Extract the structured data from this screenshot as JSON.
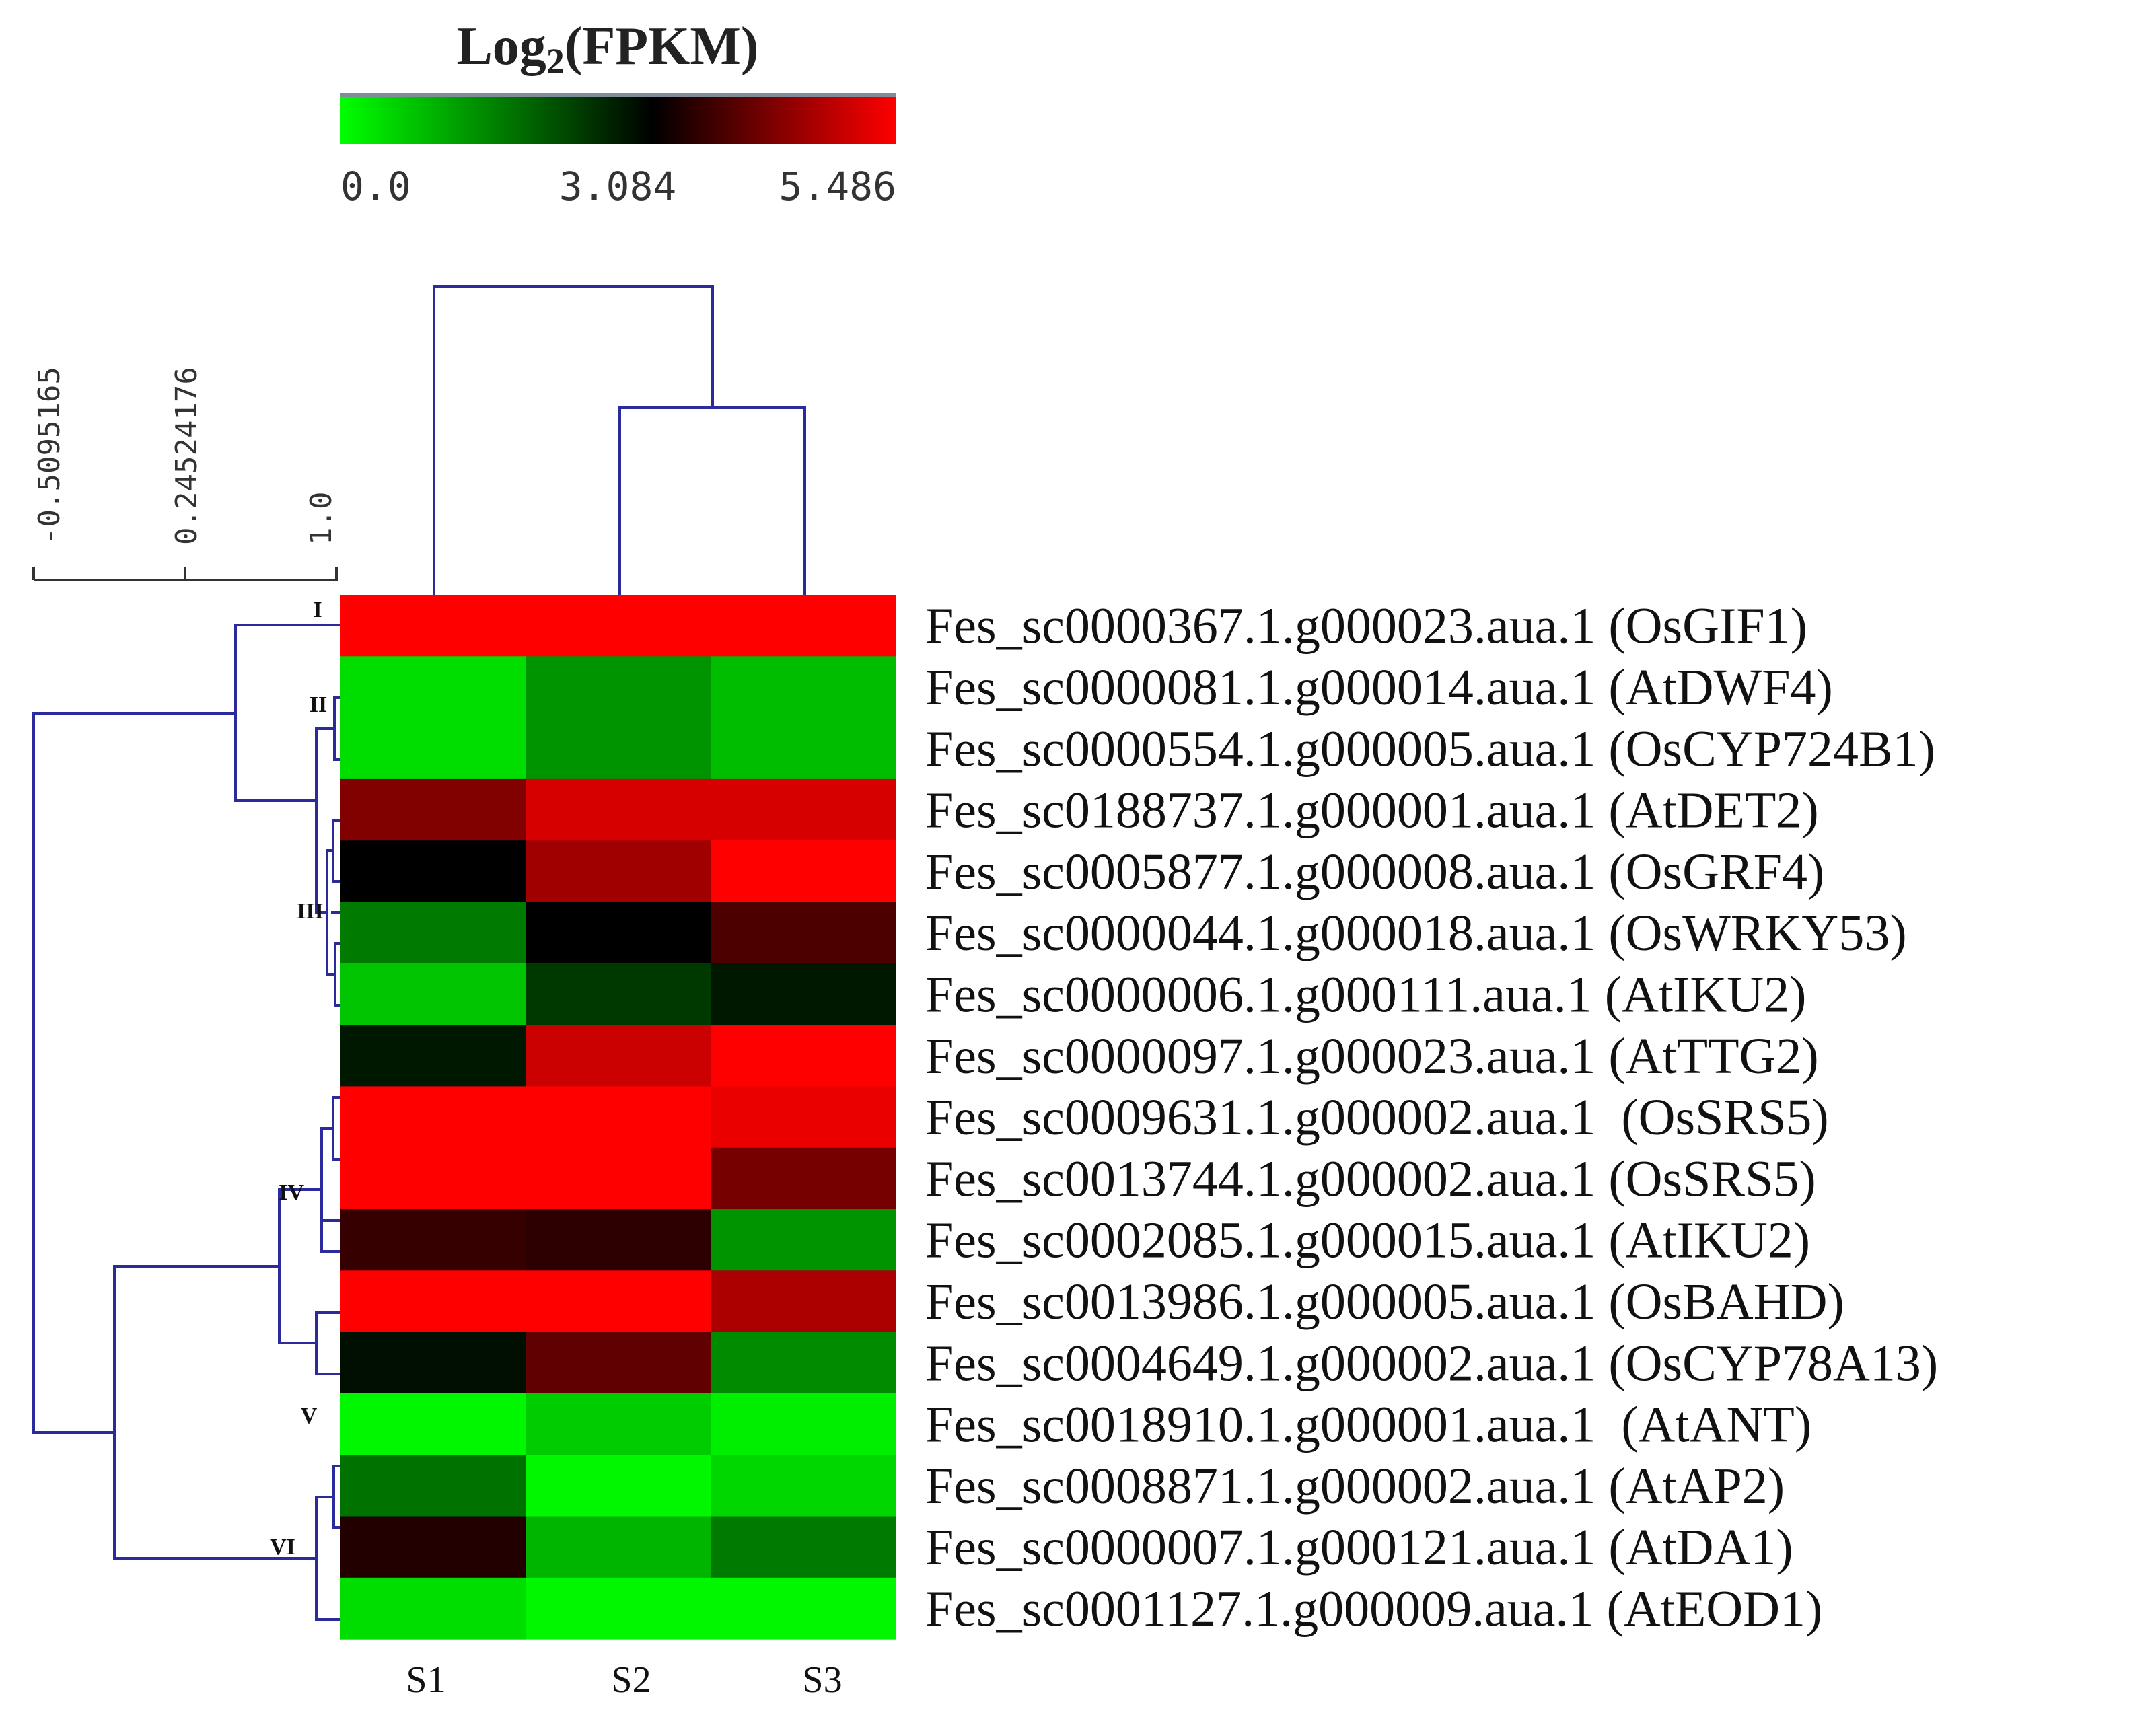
{
  "chart_data": {
    "type": "heatmap",
    "colorbar": {
      "title_main": "Log",
      "title_sub": "2",
      "title_rest": "(FPKM)",
      "min": 0.0,
      "mid": 3.084,
      "max": 5.486,
      "tick_labels": [
        "0.0",
        "3.084",
        "5.486"
      ],
      "colors": {
        "low": "#00ff00",
        "mid": "#000000",
        "high": "#ff0000"
      }
    },
    "distance_scale": {
      "tick_labels": [
        "-0.5095165",
        "0.24524176",
        "1.0"
      ]
    },
    "columns": [
      "S1",
      "S2",
      "S3"
    ],
    "rows": [
      "Fes_sc0000367.1.g000023.aua.1 (OsGIF1)",
      "Fes_sc0000081.1.g000014.aua.1 (AtDWF4)",
      "Fes_sc0000554.1.g000005.aua.1 (OsCYP724B1)",
      "Fes_sc0188737.1.g000001.aua.1 (AtDET2)",
      "Fes_sc0005877.1.g000008.aua.1 (OsGRF4)",
      "Fes_sc0000044.1.g000018.aua.1 (OsWRKY53)",
      "Fes_sc0000006.1.g000111.aua.1 (AtIKU2)",
      "Fes_sc0000097.1.g000023.aua.1 (AtTTG2)",
      "Fes_sc0009631.1.g000002.aua.1  (OsSRS5)",
      "Fes_sc0013744.1.g000002.aua.1 (OsSRS5)",
      "Fes_sc0002085.1.g000015.aua.1 (AtIKU2)",
      "Fes_sc0013986.1.g000005.aua.1 (OsBAHD)",
      "Fes_sc0004649.1.g000002.aua.1 (OsCYP78A13)",
      "Fes_sc0018910.1.g000001.aua.1  (AtANT)",
      "Fes_sc0008871.1.g000002.aua.1 (AtAP2)",
      "Fes_sc0000007.1.g000121.aua.1 (AtDA1)",
      "Fes_sc0001127.1.g000009.aua.1 (AtEOD1)"
    ],
    "values": [
      [
        5.486,
        5.486,
        5.486
      ],
      [
        0.4,
        1.3,
        0.8
      ],
      [
        0.4,
        1.3,
        0.8
      ],
      [
        4.3,
        5.1,
        5.1
      ],
      [
        3.084,
        4.6,
        5.486
      ],
      [
        1.6,
        3.084,
        3.8
      ],
      [
        0.7,
        2.4,
        2.8
      ],
      [
        2.8,
        5.0,
        5.486
      ],
      [
        5.486,
        5.486,
        5.3
      ],
      [
        5.486,
        5.486,
        4.2
      ],
      [
        3.6,
        3.5,
        1.3
      ],
      [
        5.486,
        5.486,
        4.7
      ],
      [
        2.9,
        4.0,
        1.4
      ],
      [
        0.1,
        0.6,
        0.2
      ],
      [
        1.7,
        0.1,
        0.5
      ],
      [
        3.4,
        0.9,
        1.6
      ],
      [
        0.4,
        0.1,
        0.1
      ]
    ],
    "row_clusters": [
      {
        "label": "I",
        "rows": [
          0
        ]
      },
      {
        "label": "II",
        "rows": [
          1,
          2
        ]
      },
      {
        "label": "III",
        "rows": [
          3,
          4,
          5,
          6,
          7
        ]
      },
      {
        "label": "IV",
        "rows": [
          8,
          9,
          10,
          11
        ]
      },
      {
        "label": "V",
        "rows": [
          12,
          13
        ]
      },
      {
        "label": "VI",
        "rows": [
          14,
          15,
          16
        ]
      }
    ],
    "column_dendrogram": "S1 joins (S2, S3)"
  }
}
